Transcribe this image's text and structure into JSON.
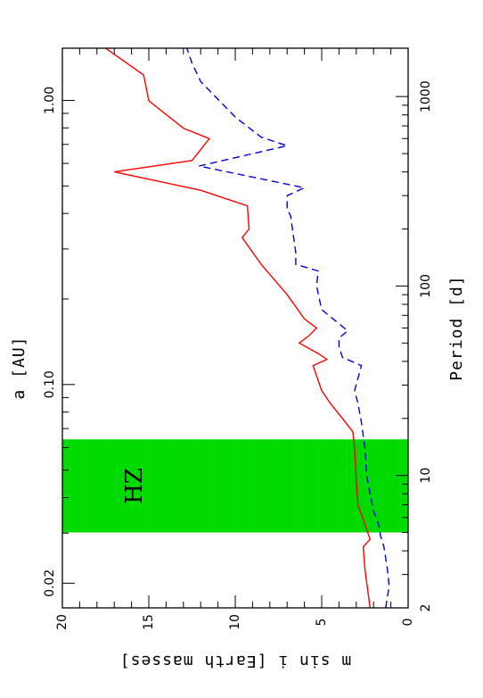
{
  "chart_data": {
    "type": "line",
    "orientation": "rotated-90-ccw",
    "xlabel": "Period  [d]",
    "x2label": "a [AU]",
    "ylabel": "m  sin  i  [Earth  masses]",
    "x_scale": "log",
    "xlim": [
      2,
      1800
    ],
    "ylim": [
      0,
      20
    ],
    "x_ticks": [
      2,
      10,
      100,
      1000
    ],
    "x_tick_labels": [
      "2",
      "10",
      "100",
      "1000"
    ],
    "x2_ticks": [
      0.02,
      0.1,
      1.0
    ],
    "x2_tick_labels": [
      "0.02",
      "0.10",
      "1.00"
    ],
    "y_ticks": [
      0,
      5,
      10,
      15,
      20
    ],
    "y_tick_labels": [
      "0",
      "5",
      "10",
      "15",
      "20"
    ],
    "hz_band": {
      "label": "HZ",
      "x_range": [
        5.0,
        15.5
      ],
      "color": "#00e000"
    },
    "series": [
      {
        "color": "#ff0000",
        "style": "solid",
        "points": [
          [
            2.0,
            2.2
          ],
          [
            3.2,
            2.5
          ],
          [
            4.2,
            2.6
          ],
          [
            4.6,
            2.2
          ],
          [
            5.2,
            2.4
          ],
          [
            7.0,
            2.9
          ],
          [
            9.5,
            3.0
          ],
          [
            14.0,
            3.1
          ],
          [
            17.0,
            3.2
          ],
          [
            20.0,
            3.8
          ],
          [
            24.0,
            4.5
          ],
          [
            28.0,
            5.0
          ],
          [
            38.0,
            5.5
          ],
          [
            41.0,
            4.7
          ],
          [
            44.0,
            5.2
          ],
          [
            50.0,
            6.3
          ],
          [
            55.0,
            5.7
          ],
          [
            60.0,
            5.3
          ],
          [
            67.0,
            6.0
          ],
          [
            90.0,
            7.0
          ],
          [
            130.0,
            8.5
          ],
          [
            180.0,
            9.6
          ],
          [
            200.0,
            9.2
          ],
          [
            265.0,
            9.3
          ],
          [
            320.0,
            12.0
          ],
          [
            400.0,
            17.0
          ],
          [
            460.0,
            12.5
          ],
          [
            600.0,
            11.5
          ],
          [
            680.0,
            13.0
          ],
          [
            950.0,
            15.0
          ],
          [
            1300.0,
            15.3
          ],
          [
            1800.0,
            17.5
          ]
        ]
      },
      {
        "color": "#0000dd",
        "style": "dashed",
        "points": [
          [
            2.0,
            1.3
          ],
          [
            2.6,
            1.1
          ],
          [
            3.2,
            1.2
          ],
          [
            4.2,
            1.4
          ],
          [
            4.8,
            1.6
          ],
          [
            5.5,
            1.7
          ],
          [
            6.5,
            2.0
          ],
          [
            8.0,
            2.2
          ],
          [
            10.0,
            2.4
          ],
          [
            14.0,
            2.5
          ],
          [
            19.0,
            2.7
          ],
          [
            24.0,
            2.9
          ],
          [
            28.0,
            3.1
          ],
          [
            38.0,
            2.7
          ],
          [
            42.0,
            3.8
          ],
          [
            48.0,
            4.0
          ],
          [
            53.0,
            4.0
          ],
          [
            58.0,
            3.5
          ],
          [
            75.0,
            5.0
          ],
          [
            100.0,
            5.3
          ],
          [
            120.0,
            5.2
          ],
          [
            130.0,
            6.5
          ],
          [
            150.0,
            6.5
          ],
          [
            235.0,
            6.8
          ],
          [
            255.0,
            7.0
          ],
          [
            280.0,
            7.0
          ],
          [
            300.0,
            7.0
          ],
          [
            330.0,
            6.0
          ],
          [
            430.0,
            12.1
          ],
          [
            550.0,
            7.0
          ],
          [
            610.0,
            8.5
          ],
          [
            780.0,
            10.0
          ],
          [
            1200.0,
            12.0
          ],
          [
            1500.0,
            12.5
          ],
          [
            1800.0,
            12.8
          ]
        ]
      }
    ]
  }
}
